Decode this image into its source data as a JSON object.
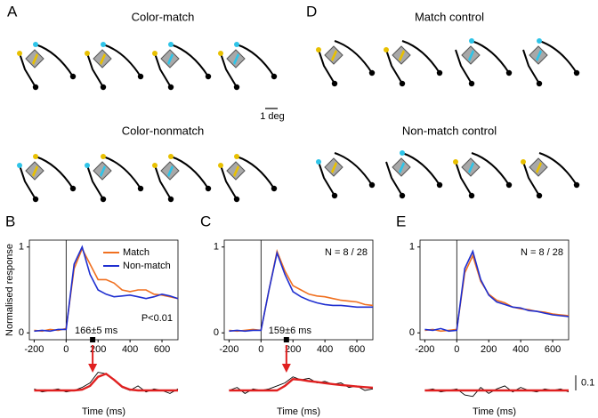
{
  "panels": {
    "A": {
      "letter": "A",
      "titles": [
        "Color-match",
        "Color-nonmatch"
      ]
    },
    "D": {
      "letter": "D",
      "titles": [
        "Match control",
        "Non-match control"
      ]
    },
    "scale_label": "1 deg"
  },
  "chart_data": [
    {
      "type": "line",
      "letter": "B",
      "x": [
        -200,
        -150,
        -100,
        -50,
        0,
        50,
        100,
        150,
        200,
        250,
        300,
        350,
        400,
        450,
        500,
        550,
        600,
        650,
        700
      ],
      "series": [
        {
          "name": "Match",
          "color": "#f07020",
          "values": [
            0.03,
            0.02,
            0.04,
            0.03,
            0.05,
            0.75,
            0.98,
            0.8,
            0.62,
            0.62,
            0.58,
            0.5,
            0.48,
            0.5,
            0.5,
            0.45,
            0.44,
            0.42,
            0.4
          ]
        },
        {
          "name": "Non-match",
          "color": "#1f2fd0",
          "values": [
            0.02,
            0.03,
            0.02,
            0.04,
            0.04,
            0.8,
            1.0,
            0.68,
            0.5,
            0.45,
            0.42,
            0.43,
            0.44,
            0.42,
            0.4,
            0.42,
            0.45,
            0.43,
            0.4
          ]
        }
      ],
      "xlim": [
        -230,
        700
      ],
      "ylim": [
        -0.08,
        1.08
      ],
      "xticks": [
        -200,
        0,
        200,
        400,
        600
      ],
      "yticks": [
        0,
        1
      ],
      "ylabel": "Normalised response",
      "xlabel": "Time (ms)",
      "legend": "upper right",
      "annotations": [
        {
          "text": "166±5 ms",
          "x": 166
        },
        {
          "text": "P<0.01",
          "position": "lower right"
        }
      ],
      "difference": {
        "ylim": [
          -0.1,
          0.2
        ],
        "series": [
          {
            "color": "#000000",
            "values": [
              0.01,
              -0.01,
              0.0,
              0.01,
              -0.01,
              0.0,
              0.02,
              0.05,
              0.12,
              0.11,
              0.07,
              0.02,
              0.0,
              0.03,
              -0.01,
              0.01,
              0.0,
              -0.02,
              0.01
            ]
          },
          {
            "color": "#e02020",
            "values": [
              0,
              0,
              0,
              0,
              0,
              0,
              0.005,
              0.03,
              0.09,
              0.11,
              0.07,
              0.025,
              0.005,
              0,
              0,
              0,
              0,
              0,
              0
            ]
          }
        ]
      }
    },
    {
      "type": "line",
      "letter": "C",
      "x": [
        -200,
        -150,
        -100,
        -50,
        0,
        50,
        100,
        150,
        200,
        250,
        300,
        350,
        400,
        450,
        500,
        550,
        600,
        650,
        700
      ],
      "series": [
        {
          "color": "#f07020",
          "values": [
            0.03,
            0.02,
            0.03,
            0.04,
            0.03,
            0.5,
            0.95,
            0.72,
            0.55,
            0.5,
            0.45,
            0.43,
            0.42,
            0.4,
            0.38,
            0.37,
            0.36,
            0.33,
            0.32
          ]
        },
        {
          "color": "#1f2fd0",
          "values": [
            0.02,
            0.03,
            0.02,
            0.03,
            0.03,
            0.5,
            0.93,
            0.68,
            0.48,
            0.42,
            0.38,
            0.35,
            0.33,
            0.32,
            0.32,
            0.31,
            0.3,
            0.3,
            0.3
          ]
        }
      ],
      "xlim": [
        -230,
        700
      ],
      "ylim": [
        -0.08,
        1.08
      ],
      "xticks": [
        -200,
        0,
        200,
        400,
        600
      ],
      "yticks": [
        0,
        1
      ],
      "xlabel": "Time (ms)",
      "annotations": [
        {
          "text": "159±6 ms",
          "x": 159
        },
        {
          "text": "N = 8 / 28",
          "position": "upper right"
        }
      ],
      "difference": {
        "ylim": [
          -0.1,
          0.2
        ],
        "series": [
          {
            "color": "#000000",
            "values": [
              0.0,
              0.02,
              -0.02,
              0.01,
              0.0,
              0.01,
              0.03,
              0.05,
              0.09,
              0.07,
              0.08,
              0.05,
              0.06,
              0.04,
              0.05,
              0.02,
              0.03,
              0.0,
              0.01
            ]
          },
          {
            "color": "#e02020",
            "values": [
              0,
              0,
              0,
              0,
              0,
              0,
              0,
              0.03,
              0.075,
              0.07,
              0.062,
              0.055,
              0.048,
              0.042,
              0.036,
              0.031,
              0.026,
              0.022,
              0.018
            ]
          }
        ]
      }
    },
    {
      "type": "line",
      "letter": "E",
      "x": [
        -200,
        -150,
        -100,
        -50,
        0,
        50,
        100,
        150,
        200,
        250,
        300,
        350,
        400,
        450,
        500,
        550,
        600,
        650,
        700
      ],
      "series": [
        {
          "color": "#f07020",
          "values": [
            0.03,
            0.04,
            0.02,
            0.03,
            0.04,
            0.7,
            0.9,
            0.6,
            0.45,
            0.38,
            0.35,
            0.3,
            0.28,
            0.27,
            0.25,
            0.24,
            0.22,
            0.21,
            0.2
          ]
        },
        {
          "color": "#1f2fd0",
          "values": [
            0.04,
            0.03,
            0.05,
            0.02,
            0.03,
            0.75,
            0.95,
            0.62,
            0.44,
            0.36,
            0.33,
            0.3,
            0.29,
            0.26,
            0.25,
            0.23,
            0.21,
            0.2,
            0.19
          ]
        }
      ],
      "xlim": [
        -230,
        700
      ],
      "ylim": [
        -0.08,
        1.08
      ],
      "xticks": [
        -200,
        0,
        200,
        400,
        600
      ],
      "yticks": [
        0,
        1
      ],
      "xlabel": "Time (ms)",
      "annotations": [
        {
          "text": "N = 8 / 28",
          "position": "upper right"
        }
      ],
      "difference": {
        "ylim": [
          -0.1,
          0.2
        ],
        "scale": 0.1,
        "series": [
          {
            "color": "#000000",
            "values": [
              0.0,
              0.01,
              -0.01,
              0.0,
              0.01,
              -0.03,
              -0.04,
              0.02,
              -0.02,
              0.01,
              0.03,
              -0.01,
              0.02,
              0.0,
              -0.01,
              0.01,
              0.0,
              0.01,
              -0.01
            ]
          },
          {
            "color": "#e02020",
            "values": [
              0,
              0,
              0,
              0,
              0,
              0,
              0,
              0,
              0,
              0,
              0,
              0,
              0,
              0,
              0,
              0,
              0,
              0,
              0
            ]
          }
        ]
      }
    }
  ]
}
